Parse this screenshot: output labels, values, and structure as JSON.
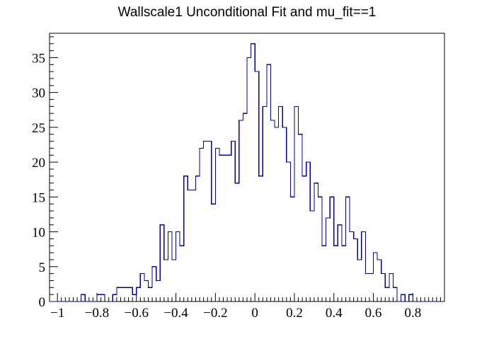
{
  "chart_data": {
    "type": "histogram",
    "title": "Wallscale1 Unconditional Fit and mu_fit==1",
    "xlabel": "",
    "ylabel": "",
    "xlim": [
      -1.04,
      0.96
    ],
    "ylim": [
      0,
      38.5
    ],
    "x_ticks": [
      -1,
      -0.8,
      -0.6,
      -0.4,
      -0.2,
      0,
      0.2,
      0.4,
      0.6,
      0.8
    ],
    "x_tick_labels": [
      "−1",
      "−0.8",
      "−0.6",
      "−0.4",
      "−0.2",
      "0",
      "0.2",
      "0.4",
      "0.6",
      "0.8"
    ],
    "y_ticks": [
      0,
      5,
      10,
      15,
      20,
      25,
      30,
      35
    ],
    "y_tick_labels": [
      "0",
      "5",
      "10",
      "15",
      "20",
      "25",
      "30",
      "35"
    ],
    "bin_width": 0.02,
    "x_start": -1.04,
    "bin_values": [
      0,
      0,
      0,
      0,
      0,
      0,
      0,
      0,
      1,
      0,
      0,
      0,
      1,
      1,
      0,
      0,
      1,
      2,
      2,
      2,
      2,
      1,
      2,
      4,
      3,
      2,
      5,
      3,
      11,
      6,
      10,
      6,
      10,
      8,
      18,
      16,
      16,
      18,
      22,
      23,
      23,
      14,
      22,
      21,
      21,
      21,
      23,
      17,
      26,
      27,
      35,
      37,
      33,
      18,
      28,
      34,
      26,
      25,
      28,
      25,
      20,
      15,
      28,
      24,
      18,
      20,
      13,
      17,
      15,
      8,
      12,
      15,
      8,
      11,
      8,
      15,
      10,
      9,
      6,
      10,
      4,
      4,
      7,
      6,
      4,
      2,
      4,
      2,
      0,
      1,
      0,
      1,
      0,
      0,
      0,
      0,
      0,
      0,
      0,
      0
    ],
    "line_color": "#00008b",
    "grid": false,
    "legend": "none"
  }
}
